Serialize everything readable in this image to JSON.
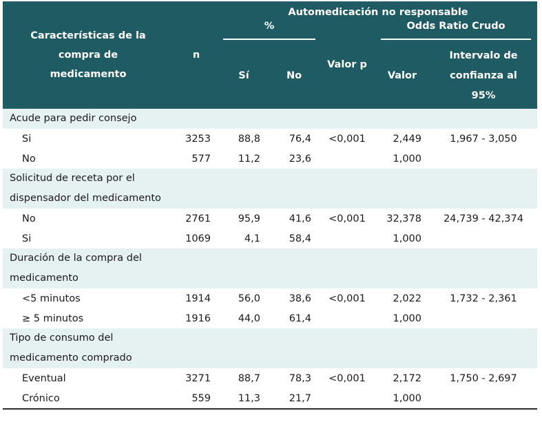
{
  "header": {
    "characteristics": "Características de la compra de medicamento",
    "n": "n",
    "automedicacion": "Automedicación no responsable",
    "percent": "%",
    "si": "Sí",
    "no": "No",
    "valor_p": "Valor p",
    "odds_ratio": "Odds Ratio Crudo",
    "valor": "Valor",
    "intervalo": "Intervalo de confianza al 95%"
  },
  "groups": [
    {
      "title": "Acude para pedir consejo",
      "rows": [
        {
          "label": "Si",
          "n": "3253",
          "si": "88,8",
          "no": "76,4",
          "p": "<0,001",
          "valor": "2,449",
          "ic": "1,967 - 3,050"
        },
        {
          "label": "No",
          "n": "577",
          "si": "11,2",
          "no": "23,6",
          "p": "",
          "valor": "1,000",
          "ic": ""
        }
      ]
    },
    {
      "title": "Solicitud de receta por el dispensador del medicamento",
      "rows": [
        {
          "label": "No",
          "n": "2761",
          "si": "95,9",
          "no": "41,6",
          "p": "<0,001",
          "valor": "32,378",
          "ic": "24,739 - 42,374"
        },
        {
          "label": "Si",
          "n": "1069",
          "si": "4,1",
          "no": "58,4",
          "p": "",
          "valor": "1,000",
          "ic": ""
        }
      ]
    },
    {
      "title": "Duración de la compra del medicamento",
      "rows": [
        {
          "label": "<5 minutos",
          "n": "1914",
          "si": "56,0",
          "no": "38,6",
          "p": "<0,001",
          "valor": "2,022",
          "ic": "1,732 - 2,361"
        },
        {
          "label": "≥ 5 minutos",
          "n": "1916",
          "si": "44,0",
          "no": "61,4",
          "p": "",
          "valor": "1,000",
          "ic": ""
        }
      ]
    },
    {
      "title": "Tipo de consumo del medicamento comprado",
      "rows": [
        {
          "label": "Eventual",
          "n": "3271",
          "si": "88,7",
          "no": "78,3",
          "p": "<0,001",
          "valor": "2,172",
          "ic": "1,750 - 2,697"
        },
        {
          "label": "Crónico",
          "n": "559",
          "si": "11,3",
          "no": "21,7",
          "p": "",
          "valor": "1,000",
          "ic": ""
        }
      ]
    }
  ]
}
